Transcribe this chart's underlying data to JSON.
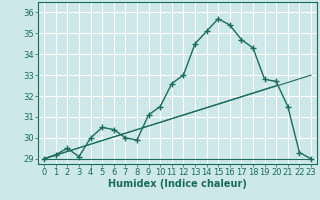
{
  "xlabel": "Humidex (Indice chaleur)",
  "background_color": "#cde8e8",
  "grid_color": "#ffffff",
  "line_color": "#1a6b5a",
  "xlim": [
    -0.5,
    23.5
  ],
  "ylim": [
    28.75,
    36.5
  ],
  "yticks": [
    29,
    30,
    31,
    32,
    33,
    34,
    35,
    36
  ],
  "xticks": [
    0,
    1,
    2,
    3,
    4,
    5,
    6,
    7,
    8,
    9,
    10,
    11,
    12,
    13,
    14,
    15,
    16,
    17,
    18,
    19,
    20,
    21,
    22,
    23
  ],
  "main_curve_x": [
    0,
    1,
    2,
    3,
    4,
    5,
    6,
    7,
    8,
    9,
    10,
    11,
    12,
    13,
    14,
    15,
    16,
    17,
    18,
    19,
    20,
    21,
    22,
    23
  ],
  "main_curve_y": [
    29.0,
    29.2,
    29.5,
    29.1,
    30.0,
    30.5,
    30.4,
    30.0,
    29.9,
    31.1,
    31.5,
    32.6,
    33.0,
    34.5,
    35.1,
    35.7,
    35.4,
    34.7,
    34.3,
    32.8,
    32.7,
    31.5,
    29.3,
    29.0
  ],
  "line1_x": [
    0,
    23
  ],
  "line1_y": [
    29.0,
    29.0
  ],
  "line2_x": [
    0,
    20
  ],
  "line2_y": [
    29.0,
    32.5
  ],
  "line3_x": [
    0,
    23
  ],
  "line3_y": [
    29.0,
    33.0
  ]
}
